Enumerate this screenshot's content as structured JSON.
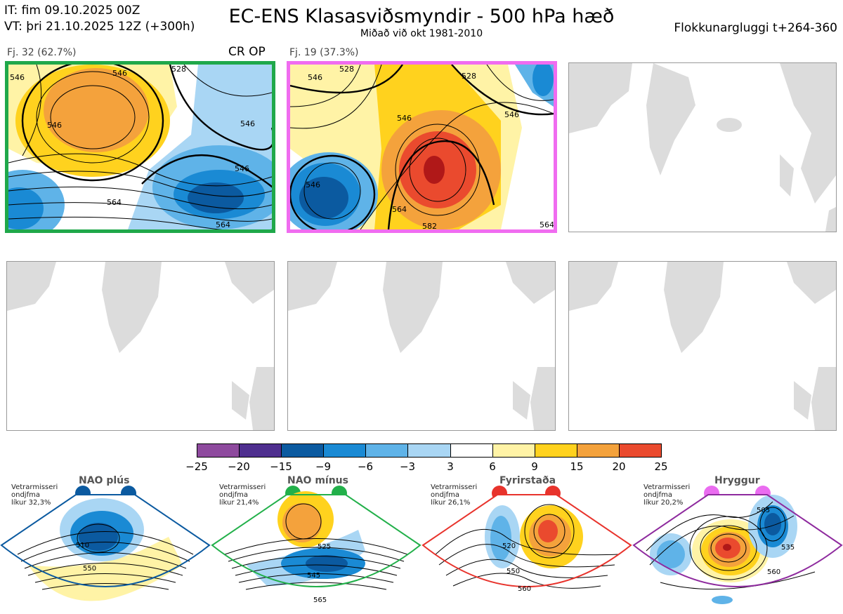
{
  "header": {
    "init_time": "IT: fim 09.10.2025 00Z",
    "valid_time": "VT: þri 21.10.2025 12Z  (+300h)",
    "title": "EC-ENS Klasasviðsmyndir - 500 hPa hæð",
    "subtitle": "Miðað við okt 1981-2010",
    "window": "Flokkunargluggi t+264-360"
  },
  "clusters": [
    {
      "label": "Fj. 32 (62.7%)",
      "tag": "CR OP",
      "border_color": "#1fa84a",
      "contour_labels": [
        "546",
        "528",
        "546",
        "546",
        "546",
        "564",
        "564",
        "546"
      ]
    },
    {
      "label": "Fj. 19 (37.3%)",
      "tag": "",
      "border_color": "#f06cf0",
      "contour_labels": [
        "546",
        "528",
        "546",
        "528",
        "546",
        "564",
        "582",
        "546",
        "564"
      ]
    }
  ],
  "colorbar": {
    "ticks": [
      "−25",
      "−20",
      "−15",
      "−9",
      "−6",
      "−3",
      "3",
      "6",
      "9",
      "15",
      "20",
      "25"
    ],
    "colors": [
      "#8e4a9e",
      "#4f2f8f",
      "#0b5aa0",
      "#1a8ad4",
      "#5fb3e8",
      "#a9d6f4",
      "#ffffff",
      "#fff3a6",
      "#ffd21e",
      "#f4a23c",
      "#ea4a2e",
      "#b01818"
    ]
  },
  "regimes": [
    {
      "name": "NAO plús",
      "season": "Vetrarmisseri",
      "class": "ondjfma",
      "prob": "líkur 32,3%",
      "color": "#0b5aa0",
      "contours": [
        "510",
        "550"
      ]
    },
    {
      "name": "NAO mínus",
      "season": "Vetrarmisseri",
      "class": "ondjfma",
      "prob": "líkur 21,4%",
      "color": "#22b04a",
      "contours": [
        "525",
        "545",
        "565"
      ]
    },
    {
      "name": "Fyrirstaða",
      "season": "Vetrarmisseri",
      "class": "ondjfma",
      "prob": "líkur 26,1%",
      "color": "#e8332c",
      "contours": [
        "520",
        "550",
        "560"
      ]
    },
    {
      "name": "Hryggur",
      "season": "Vetrarmisseri",
      "class": "ondjfma",
      "prob": "líkur 20,2%",
      "color": "#ea6cf0",
      "contours": [
        "505",
        "535",
        "560"
      ]
    }
  ]
}
